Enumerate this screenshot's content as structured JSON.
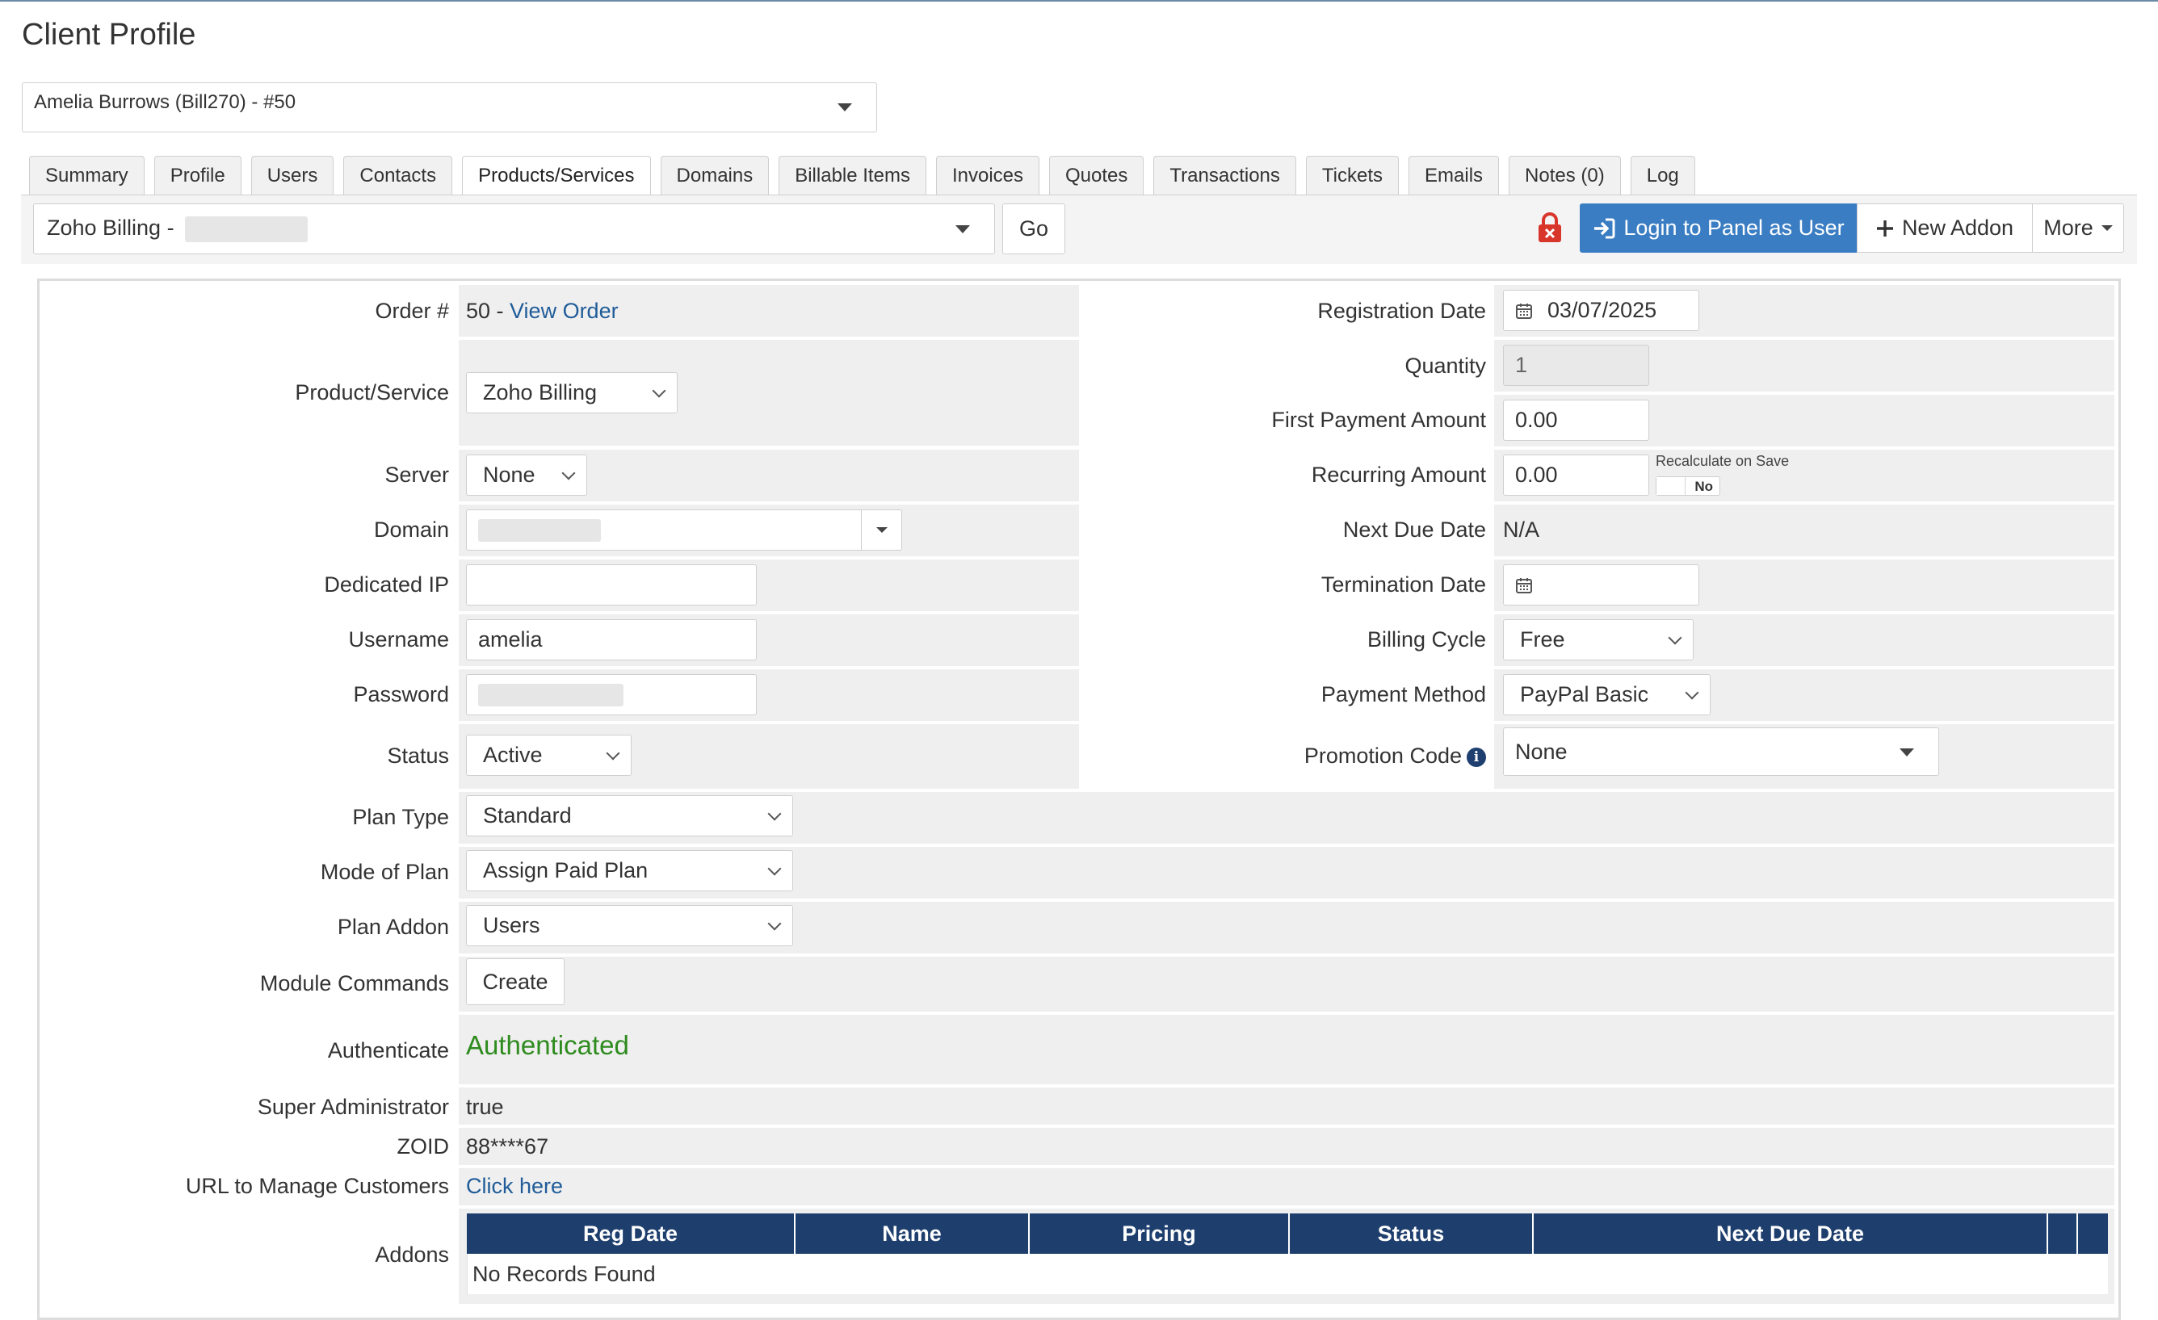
{
  "page": {
    "title": "Client Profile"
  },
  "client_select": {
    "value": "Amelia Burrows (Bill270) - #50"
  },
  "tabs": [
    {
      "label": "Summary",
      "active": false
    },
    {
      "label": "Profile",
      "active": false
    },
    {
      "label": "Users",
      "active": false
    },
    {
      "label": "Contacts",
      "active": false
    },
    {
      "label": "Products/Services",
      "active": true
    },
    {
      "label": "Domains",
      "active": false
    },
    {
      "label": "Billable Items",
      "active": false
    },
    {
      "label": "Invoices",
      "active": false
    },
    {
      "label": "Quotes",
      "active": false
    },
    {
      "label": "Transactions",
      "active": false
    },
    {
      "label": "Tickets",
      "active": false
    },
    {
      "label": "Emails",
      "active": false
    },
    {
      "label": "Notes (0)",
      "active": false
    },
    {
      "label": "Log",
      "active": false
    }
  ],
  "toolbar": {
    "service_select": "Zoho Billing -",
    "go_label": "Go",
    "login_label": "Login to Panel as User",
    "new_addon_label": "New Addon",
    "more_label": "More",
    "colors": {
      "primary": "#3a7dc3",
      "lock": "#d9362b"
    }
  },
  "form": {
    "left": {
      "order_label": "Order #",
      "order_value": "50 - ",
      "order_link": "View Order",
      "product_label": "Product/Service",
      "product_value": "Zoho Billing",
      "server_label": "Server",
      "server_value": "None",
      "domain_label": "Domain",
      "dedicated_ip_label": "Dedicated IP",
      "dedicated_ip_value": "",
      "username_label": "Username",
      "username_value": "amelia",
      "password_label": "Password",
      "status_label": "Status",
      "status_value": "Active",
      "plan_type_label": "Plan Type",
      "plan_type_value": "Standard",
      "mode_label": "Mode of Plan",
      "mode_value": "Assign Paid Plan",
      "plan_addon_label": "Plan Addon",
      "plan_addon_value": "Users",
      "module_label": "Module Commands",
      "create_label": "Create",
      "authenticate_label": "Authenticate",
      "authenticate_value": "Authenticated",
      "super_admin_label": "Super Administrator",
      "super_admin_value": "true",
      "zoid_label": "ZOID",
      "zoid_value": "88****67",
      "url_label": "URL to Manage Customers",
      "url_value": "Click here",
      "addons_label": "Addons"
    },
    "right": {
      "reg_date_label": "Registration Date",
      "reg_date_value": "03/07/2025",
      "quantity_label": "Quantity",
      "quantity_value": "1",
      "first_payment_label": "First Payment Amount",
      "first_payment_value": "0.00",
      "recurring_label": "Recurring Amount",
      "recurring_value": "0.00",
      "recalc_label": "Recalculate on Save",
      "recalc_toggle": "No",
      "next_due_label": "Next Due Date",
      "next_due_value": "N/A",
      "termination_label": "Termination Date",
      "termination_value": "",
      "billing_cycle_label": "Billing Cycle",
      "billing_cycle_value": "Free",
      "payment_method_label": "Payment Method",
      "payment_method_value": "PayPal Basic",
      "promo_label": "Promotion Code",
      "promo_value": "None"
    }
  },
  "addons_table": {
    "columns": [
      "Reg Date",
      "Name",
      "Pricing",
      "Status",
      "Next Due Date",
      "",
      ""
    ],
    "empty_text": "No Records Found",
    "header_color": "#1e3f6e"
  }
}
